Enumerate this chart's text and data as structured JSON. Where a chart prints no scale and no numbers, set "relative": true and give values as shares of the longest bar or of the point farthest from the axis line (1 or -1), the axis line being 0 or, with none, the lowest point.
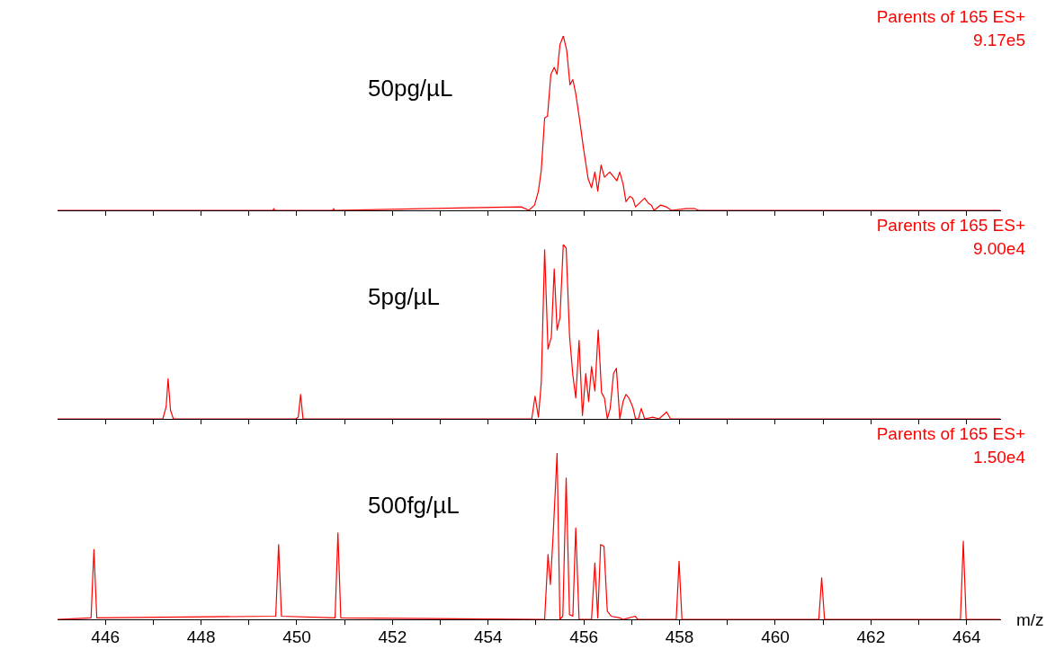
{
  "chart_data": [
    {
      "type": "line",
      "relative": true,
      "tick_labels": false,
      "xlim": [
        445,
        464.7
      ],
      "xticks": [
        446,
        {
          "value": 447,
          "label": null
        },
        448,
        {
          "value": 449,
          "label": null
        },
        450,
        {
          "value": 451,
          "label": null
        },
        452,
        {
          "value": 453,
          "label": null
        },
        454,
        {
          "value": 455,
          "label": null
        },
        456,
        {
          "value": 457,
          "label": null
        },
        458,
        {
          "value": 459,
          "label": null
        },
        460,
        {
          "value": 461,
          "label": null
        },
        462,
        {
          "value": 463,
          "label": null
        },
        464
      ],
      "marker": "none",
      "line_style": "solid",
      "legend": false,
      "grid": false,
      "annotations": [
        "50pg/µL",
        "Parents of 165 ES+",
        "9.17e5"
      ],
      "series": [
        {
          "color": "#ff0000",
          "x": [
            445,
            449.5,
            449.52,
            449.54,
            450.75,
            450.77,
            450.79,
            454.69,
            454.85,
            454.97,
            455.05,
            455.11,
            455.18,
            455.24,
            455.31,
            455.38,
            455.44,
            455.5,
            455.57,
            455.64,
            455.71,
            455.77,
            455.83,
            455.91,
            455.99,
            456.09,
            456.16,
            456.23,
            456.29,
            456.36,
            456.43,
            456.54,
            456.69,
            456.75,
            456.82,
            456.88,
            456.96,
            457.02,
            457.08,
            457.27,
            457.35,
            457.41,
            457.47,
            457.6,
            457.72,
            457.83,
            458.13,
            458.31,
            458.4,
            464.7
          ],
          "values": [
            0,
            0,
            0.01,
            0,
            0,
            0.01,
            0,
            0.02,
            0,
            0.03,
            0.11,
            0.23,
            0.53,
            0.54,
            0.78,
            0.82,
            0.78,
            0.95,
            1,
            0.92,
            0.72,
            0.75,
            0.67,
            0.52,
            0.36,
            0.18,
            0.13,
            0.22,
            0.11,
            0.26,
            0.19,
            0.22,
            0.17,
            0.22,
            0.15,
            0.05,
            0.08,
            0.07,
            0.02,
            0.07,
            0.04,
            0.03,
            0,
            0.03,
            0.02,
            0,
            0.01,
            0.01,
            0,
            0
          ]
        }
      ]
    },
    {
      "type": "line",
      "relative": true,
      "tick_labels": false,
      "xlim": [
        445,
        464.7
      ],
      "xticks": [
        446,
        {
          "value": 447,
          "label": null
        },
        448,
        {
          "value": 449,
          "label": null
        },
        450,
        {
          "value": 451,
          "label": null
        },
        452,
        {
          "value": 453,
          "label": null
        },
        454,
        {
          "value": 455,
          "label": null
        },
        456,
        {
          "value": 457,
          "label": null
        },
        458,
        {
          "value": 459,
          "label": null
        },
        460,
        {
          "value": 461,
          "label": null
        },
        462,
        {
          "value": 463,
          "label": null
        },
        464
      ],
      "marker": "none",
      "line_style": "solid",
      "legend": false,
      "grid": false,
      "annotations": [
        "5pg/µL",
        "Parents of 165 ES+",
        "9.00e4"
      ],
      "series": [
        {
          "color": "#ff0000",
          "x": [
            445,
            447.2,
            447.27,
            447.31,
            447.36,
            447.42,
            449.98,
            450.03,
            450.08,
            450.13,
            450.18,
            454.91,
            454.98,
            455.05,
            455.11,
            455.18,
            455.25,
            455.32,
            455.38,
            455.44,
            455.5,
            455.57,
            455.63,
            455.7,
            455.77,
            455.83,
            455.9,
            455.97,
            456.04,
            456.1,
            456.16,
            456.23,
            456.3,
            456.37,
            456.43,
            456.49,
            456.55,
            456.62,
            456.68,
            456.75,
            456.82,
            456.88,
            456.94,
            457.02,
            457.08,
            457.14,
            457.2,
            457.27,
            457.44,
            457.57,
            457.73,
            457.81,
            464.7
          ],
          "values": [
            0,
            0,
            0.07,
            0.23,
            0.05,
            0,
            0,
            0.01,
            0.14,
            0,
            0,
            0,
            0.13,
            0.01,
            0.21,
            0.97,
            0.4,
            0.47,
            0.86,
            0.51,
            0.58,
            1,
            0.98,
            0.48,
            0.25,
            0.12,
            0.45,
            0.02,
            0.26,
            0.1,
            0.3,
            0.16,
            0.51,
            0.15,
            0.12,
            0,
            0.06,
            0.26,
            0.29,
            0,
            0.1,
            0.14,
            0.12,
            0.07,
            0,
            0,
            0.06,
            0,
            0.01,
            0,
            0.04,
            0,
            0
          ]
        }
      ]
    },
    {
      "type": "line",
      "relative": true,
      "tick_labels": "x",
      "xlabel": "m/z",
      "xlim": [
        445,
        464.7
      ],
      "xticks": [
        446,
        {
          "value": 447,
          "label": null
        },
        448,
        {
          "value": 449,
          "label": null
        },
        450,
        {
          "value": 451,
          "label": null
        },
        452,
        {
          "value": 453,
          "label": null
        },
        454,
        {
          "value": 455,
          "label": null
        },
        456,
        {
          "value": 457,
          "label": null
        },
        458,
        {
          "value": 459,
          "label": null
        },
        460,
        {
          "value": 461,
          "label": null
        },
        462,
        {
          "value": 463,
          "label": null
        },
        464
      ],
      "marker": "none",
      "line_style": "solid",
      "legend": false,
      "grid": false,
      "annotations": [
        "500fg/µL",
        "Parents of 165 ES+",
        "1.50e4"
      ],
      "series": [
        {
          "color": "#ff0000",
          "x": [
            445,
            445.7,
            445.76,
            445.82,
            449.56,
            449.62,
            449.68,
            450.8,
            450.86,
            450.92,
            455.18,
            455.25,
            455.3,
            455.36,
            455.44,
            455.5,
            455.56,
            455.63,
            455.7,
            455.77,
            455.83,
            455.9,
            456.16,
            456.23,
            456.29,
            456.35,
            456.42,
            456.49,
            456.57,
            456.75,
            456.82,
            457.07,
            457.13,
            457.93,
            457.99,
            458.05,
            460.91,
            460.97,
            461.03,
            463.87,
            463.93,
            463.99,
            464.7
          ],
          "values": [
            0,
            0.01,
            0.42,
            0.01,
            0.02,
            0.45,
            0.02,
            0.01,
            0.52,
            0.01,
            0,
            0.39,
            0.21,
            0.52,
            1,
            0,
            0.02,
            0.85,
            0.03,
            0.02,
            0.55,
            0,
            0,
            0.34,
            0.01,
            0.45,
            0.44,
            0.05,
            0.02,
            0.01,
            0,
            0.02,
            0,
            0,
            0.35,
            0,
            0,
            0.25,
            0,
            0,
            0.47,
            0,
            0
          ]
        }
      ]
    }
  ]
}
